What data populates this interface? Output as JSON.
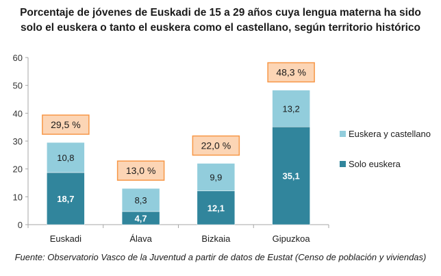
{
  "chart_data": {
    "type": "bar",
    "stacked": true,
    "title_line1": "Porcentaje  de jóvenes de Euskadi de 15 a 29 años cuya lengua materna ha sido",
    "title_line2": "solo el euskera o tanto el euskera como el castellano, según territorio histórico",
    "source": "Fuente: Observatorio Vasco de la Juventud a partir de datos de Eustat (Censo de población y viviendas)",
    "categories": [
      "Euskadi",
      "Álava",
      "Bizkaia",
      "Gipuzkoa"
    ],
    "series": [
      {
        "name": "Solo euskera",
        "values": [
          18.7,
          4.7,
          12.1,
          35.1
        ],
        "labels": [
          "18,7",
          "4,7",
          "12,1",
          "35,1"
        ],
        "color": "#31859c"
      },
      {
        "name": "Euskera y castellano",
        "values": [
          10.8,
          8.3,
          9.9,
          13.2
        ],
        "labels": [
          "10,8",
          "8,3",
          "9,9",
          "13,2"
        ],
        "color": "#92cddc"
      }
    ],
    "totals": [
      "29,5 %",
      "13,0 %",
      "22,0 %",
      "48,3 %"
    ],
    "total_box_fill": "#fcd5b5",
    "total_box_border": "#f79646",
    "ylim": [
      0,
      60
    ],
    "yticks": [
      "0",
      "10",
      "20",
      "30",
      "40",
      "50",
      "60"
    ],
    "grid": false,
    "legend_placement": "right"
  }
}
